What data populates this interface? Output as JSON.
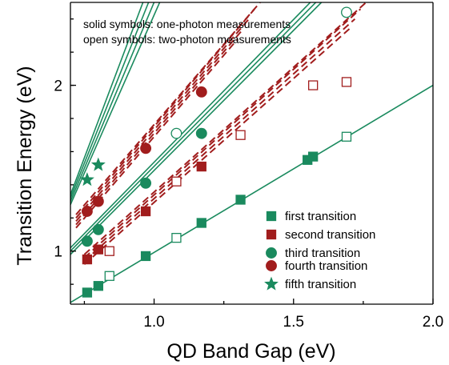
{
  "chart_data": {
    "type": "scatter",
    "xlabel": "QD Band Gap (eV)",
    "ylabel": "Transition Energy (eV)",
    "xlim": [
      0.7,
      2.0
    ],
    "ylim": [
      0.68,
      2.5
    ],
    "xticks": [
      {
        "value": 1.0,
        "label": "1.0"
      },
      {
        "value": 1.5,
        "label": "1.5"
      },
      {
        "value": 2.0,
        "label": "2.0"
      }
    ],
    "yticks": [
      {
        "value": 1,
        "label": "1"
      },
      {
        "value": 2,
        "label": "2"
      }
    ],
    "annotations": [
      "solid symbols: one-photon measurements",
      "open symbols: two-photon measurements"
    ],
    "legend_position": "bottom-right",
    "series": [
      {
        "name": "first transition",
        "color": "#1a8a5e",
        "marker": "square",
        "one_photon": [
          [
            0.76,
            0.75
          ],
          [
            0.8,
            0.79
          ],
          [
            0.97,
            0.97
          ],
          [
            1.17,
            1.17
          ],
          [
            1.31,
            1.31
          ],
          [
            1.55,
            1.55
          ],
          [
            1.57,
            1.57
          ]
        ],
        "two_photon": [
          [
            0.84,
            0.85
          ],
          [
            1.08,
            1.08
          ],
          [
            1.69,
            1.69
          ]
        ]
      },
      {
        "name": "second transition",
        "color": "#a11d1d",
        "marker": "square",
        "one_photon": [
          [
            0.76,
            0.95
          ],
          [
            0.8,
            1.01
          ],
          [
            0.97,
            1.24
          ],
          [
            1.17,
            1.51
          ]
        ],
        "two_photon": [
          [
            0.84,
            1.0
          ],
          [
            1.08,
            1.42
          ],
          [
            1.31,
            1.7
          ],
          [
            1.57,
            2.0
          ],
          [
            1.69,
            2.02
          ]
        ]
      },
      {
        "name": "third transition",
        "color": "#1a8a5e",
        "marker": "circle",
        "one_photon": [
          [
            0.76,
            1.06
          ],
          [
            0.8,
            1.13
          ],
          [
            0.97,
            1.41
          ],
          [
            1.17,
            1.71
          ]
        ],
        "two_photon": [
          [
            1.08,
            1.71
          ],
          [
            1.69,
            2.44
          ]
        ]
      },
      {
        "name": "fourth transition",
        "color": "#a11d1d",
        "marker": "circle",
        "one_photon": [
          [
            0.76,
            1.24
          ],
          [
            0.8,
            1.3
          ],
          [
            0.97,
            1.62
          ],
          [
            1.17,
            1.96
          ]
        ],
        "two_photon": []
      },
      {
        "name": "fifth transition",
        "color": "#1a8a5e",
        "marker": "star",
        "one_photon": [
          [
            0.76,
            1.43
          ],
          [
            0.8,
            1.52
          ]
        ],
        "two_photon": []
      }
    ],
    "theory_lines": [
      {
        "color": "#1a8a5e",
        "style": "solid",
        "points": [
          [
            0.7,
            0.69
          ],
          [
            2.0,
            2.0
          ]
        ]
      },
      {
        "color": "#a11d1d",
        "style": "dashed",
        "points": [
          [
            0.75,
            0.92
          ],
          [
            1.7,
            2.34
          ]
        ]
      },
      {
        "color": "#a11d1d",
        "style": "dashed",
        "points": [
          [
            0.75,
            0.94
          ],
          [
            1.72,
            2.4
          ]
        ]
      },
      {
        "color": "#a11d1d",
        "style": "dashed",
        "points": [
          [
            0.75,
            0.96
          ],
          [
            1.74,
            2.46
          ]
        ]
      },
      {
        "color": "#a11d1d",
        "style": "dashed",
        "points": [
          [
            0.75,
            0.98
          ],
          [
            1.76,
            2.5
          ]
        ]
      },
      {
        "color": "#1a8a5e",
        "style": "solid",
        "points": [
          [
            0.7,
            0.98
          ],
          [
            1.6,
            2.5
          ]
        ]
      },
      {
        "color": "#1a8a5e",
        "style": "solid",
        "points": [
          [
            0.7,
            1.0
          ],
          [
            1.58,
            2.5
          ]
        ]
      },
      {
        "color": "#1a8a5e",
        "style": "solid",
        "points": [
          [
            0.7,
            1.02
          ],
          [
            1.56,
            2.5
          ]
        ]
      },
      {
        "color": "#a11d1d",
        "style": "dashed",
        "points": [
          [
            0.72,
            1.14
          ],
          [
            1.3,
            2.28
          ]
        ]
      },
      {
        "color": "#a11d1d",
        "style": "dashed",
        "points": [
          [
            0.72,
            1.16
          ],
          [
            1.32,
            2.34
          ]
        ]
      },
      {
        "color": "#a11d1d",
        "style": "dashed",
        "points": [
          [
            0.72,
            1.18
          ],
          [
            1.34,
            2.4
          ]
        ]
      },
      {
        "color": "#a11d1d",
        "style": "dashed",
        "points": [
          [
            0.72,
            1.2
          ],
          [
            1.36,
            2.46
          ]
        ]
      },
      {
        "color": "#a11d1d",
        "style": "dashed",
        "points": [
          [
            0.72,
            1.22
          ],
          [
            1.38,
            2.5
          ]
        ]
      },
      {
        "color": "#1a8a5e",
        "style": "solid",
        "points": [
          [
            0.7,
            1.28
          ],
          [
            1.02,
            2.5
          ]
        ]
      },
      {
        "color": "#1a8a5e",
        "style": "solid",
        "points": [
          [
            0.7,
            1.3
          ],
          [
            1.0,
            2.5
          ]
        ]
      },
      {
        "color": "#1a8a5e",
        "style": "solid",
        "points": [
          [
            0.7,
            1.32
          ],
          [
            0.98,
            2.5
          ]
        ]
      },
      {
        "color": "#1a8a5e",
        "style": "solid",
        "points": [
          [
            0.7,
            1.34
          ],
          [
            0.96,
            2.5
          ]
        ]
      }
    ]
  }
}
